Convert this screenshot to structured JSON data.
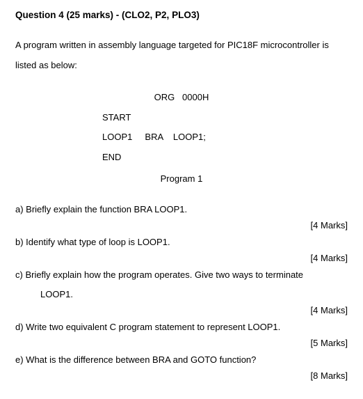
{
  "header": {
    "title": "Question 4 (25 marks) - (CLO2, P2, PLO3)"
  },
  "intro": "A program written in assembly language targeted for PIC18F microcontroller is listed as below:",
  "code": {
    "line1": "ORG   0000H",
    "line2": "START",
    "line3": "LOOP1     BRA    LOOP1;",
    "line4": "END",
    "caption": "Program 1"
  },
  "questions": {
    "a": {
      "text": "a) Briefly explain the function BRA LOOP1.",
      "marks": "[4 Marks]"
    },
    "b": {
      "text": "b) Identify what type of loop is LOOP1.",
      "marks": "[4 Marks]"
    },
    "c": {
      "text": "c) Briefly explain how the program operates. Give two ways to terminate",
      "cont": "LOOP1.",
      "marks": "[4 Marks]"
    },
    "d": {
      "text": "d) Write two equivalent C program statement to represent LOOP1.",
      "marks": "[5 Marks]"
    },
    "e": {
      "text": "e) What is the difference between BRA and GOTO function?",
      "marks": "[8 Marks]"
    }
  }
}
